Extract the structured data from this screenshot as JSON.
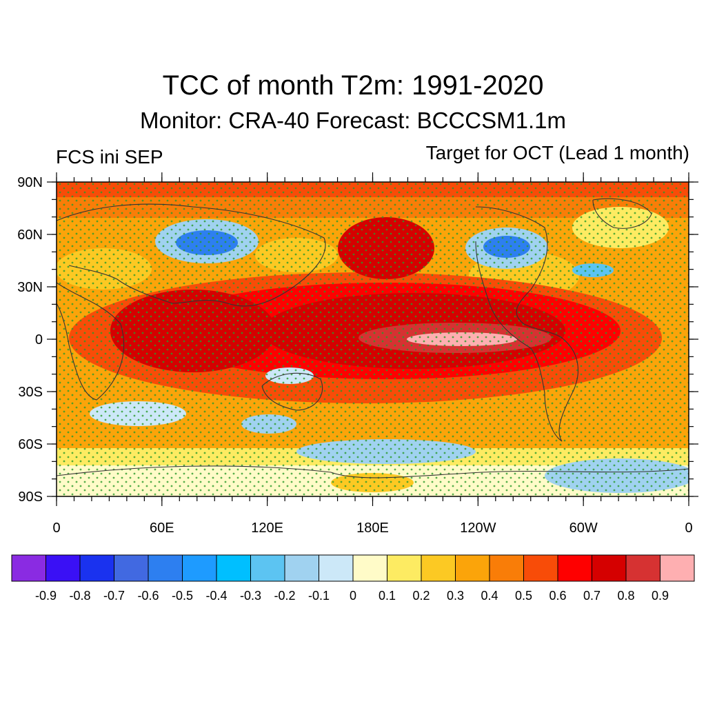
{
  "title": "TCC of month T2m: 1991-2020",
  "subtitle": "Monitor: CRA-40   Forecast: BCCCSM1.1m",
  "left_subtitle": "FCS ini SEP",
  "right_subtitle": "Target for OCT (Lead 1 month)",
  "lat_labels": [
    "90N",
    "60N",
    "30N",
    "0",
    "30S",
    "60S",
    "90S"
  ],
  "lon_labels": [
    "0",
    "60E",
    "120E",
    "180E",
    "120W",
    "60W",
    "0"
  ],
  "colorbar": {
    "colors": [
      "#8a2be2",
      "#3a10f5",
      "#1a32ef",
      "#4169e1",
      "#2d7ff0",
      "#1e9bff",
      "#00bfff",
      "#5cc4f2",
      "#a0d2f0",
      "#cce8f8",
      "#fffbc8",
      "#fdeb62",
      "#fcc923",
      "#fba40a",
      "#f97d08",
      "#f84c08",
      "#fe0000",
      "#d50000",
      "#d63232",
      "#feafb1"
    ],
    "labels": [
      "-0.9",
      "-0.8",
      "-0.7",
      "-0.6",
      "-0.5",
      "-0.4",
      "-0.3",
      "-0.2",
      "-0.1",
      "0",
      "0.1",
      "0.2",
      "0.3",
      "0.4",
      "0.5",
      "0.6",
      "0.7",
      "0.8",
      "0.9"
    ]
  }
}
